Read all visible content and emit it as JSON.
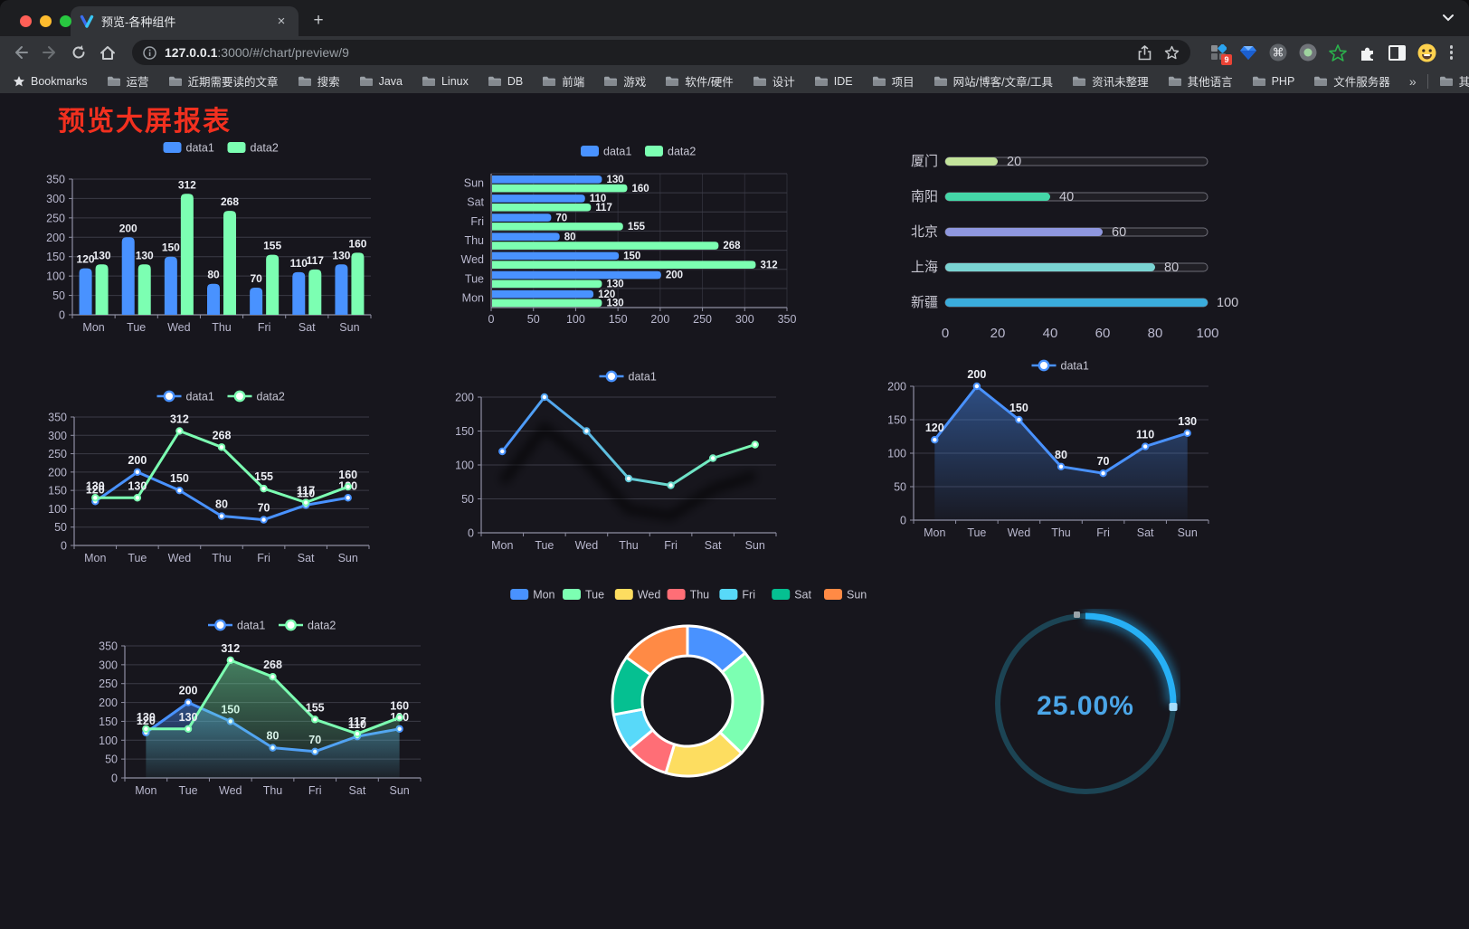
{
  "browser": {
    "tab": {
      "title": "预览-各种组件",
      "close_glyph": "×"
    },
    "new_tab_glyph": "+",
    "url": {
      "host": "127.0.0.1",
      "rest": ":3000/#/chart/preview/9"
    },
    "extensions_badge": "9",
    "bookmarks": {
      "label": "Bookmarks",
      "items": [
        "运营",
        "近期需要读的文章",
        "搜索",
        "Java",
        "Linux",
        "DB",
        "前端",
        "游戏",
        "软件/硬件",
        "设计",
        "IDE",
        "项目",
        "网站/博客/文章/工具",
        "资讯未整理",
        "其他语言",
        "PHP",
        "文件服务器"
      ],
      "overflow": "»",
      "other": "其他书签"
    }
  },
  "page": {
    "title": "预览大屏报表",
    "title_color": "#f2301f",
    "background": "#17161d"
  },
  "chart_data": [
    {
      "id": "grouped-bar",
      "type": "bar",
      "categories": [
        "Mon",
        "Tue",
        "Wed",
        "Thu",
        "Fri",
        "Sat",
        "Sun"
      ],
      "series": [
        {
          "name": "data1",
          "color": "#4992ff",
          "values": [
            120,
            200,
            150,
            80,
            70,
            110,
            130
          ]
        },
        {
          "name": "data2",
          "color": "#7cffb2",
          "values": [
            130,
            130,
            312,
            268,
            155,
            117,
            160
          ]
        }
      ],
      "ylim": [
        0,
        350
      ],
      "ytick_step": 50,
      "legend_position": "top",
      "grid": true,
      "value_labels": true
    },
    {
      "id": "grouped-bar-horizontal",
      "type": "bar-horizontal",
      "categories": [
        "Mon",
        "Tue",
        "Wed",
        "Thu",
        "Fri",
        "Sat",
        "Sun"
      ],
      "display_top_to_bottom": [
        "Sun",
        "Sat",
        "Fri",
        "Thu",
        "Wed",
        "Tue",
        "Mon"
      ],
      "series": [
        {
          "name": "data1",
          "color": "#4992ff",
          "values": [
            120,
            200,
            150,
            80,
            70,
            110,
            130
          ]
        },
        {
          "name": "data2",
          "color": "#7cffb2",
          "values": [
            130,
            130,
            312,
            268,
            155,
            117,
            160
          ]
        }
      ],
      "xlim": [
        0,
        350
      ],
      "xtick_step": 50,
      "legend_position": "top",
      "grid": true,
      "value_labels": true
    },
    {
      "id": "city-progress",
      "type": "progress",
      "max": 100,
      "axis_ticks": [
        0,
        20,
        40,
        60,
        80,
        100
      ],
      "items": [
        {
          "label": "厦门",
          "value": 20,
          "color": "#c3e39b"
        },
        {
          "label": "南阳",
          "value": 40,
          "color": "#44d7a8"
        },
        {
          "label": "北京",
          "value": 60,
          "color": "#8f97df"
        },
        {
          "label": "上海",
          "value": 80,
          "color": "#7ad3d2"
        },
        {
          "label": "新疆",
          "value": 100,
          "color": "#3aacdc"
        }
      ]
    },
    {
      "id": "line-two-series",
      "type": "line",
      "categories": [
        "Mon",
        "Tue",
        "Wed",
        "Thu",
        "Fri",
        "Sat",
        "Sun"
      ],
      "series": [
        {
          "name": "data1",
          "color": "#4992ff",
          "values": [
            120,
            200,
            150,
            80,
            70,
            110,
            130
          ]
        },
        {
          "name": "data2",
          "color": "#7cffb2",
          "values": [
            130,
            130,
            312,
            268,
            155,
            117,
            160
          ]
        }
      ],
      "ylim": [
        0,
        350
      ],
      "ytick_step": 50,
      "legend_position": "top",
      "value_labels": true
    },
    {
      "id": "line-gradient",
      "type": "line",
      "categories": [
        "Mon",
        "Tue",
        "Wed",
        "Thu",
        "Fri",
        "Sat",
        "Sun"
      ],
      "series": [
        {
          "name": "data1",
          "gradient": [
            "#4992ff",
            "#7cffb2"
          ],
          "values": [
            120,
            200,
            150,
            80,
            70,
            110,
            130
          ]
        }
      ],
      "ylim": [
        0,
        200
      ],
      "ytick_step": 50,
      "legend_position": "top",
      "value_labels": false,
      "shadow": true
    },
    {
      "id": "area-single",
      "type": "area",
      "categories": [
        "Mon",
        "Tue",
        "Wed",
        "Thu",
        "Fri",
        "Sat",
        "Sun"
      ],
      "series": [
        {
          "name": "data1",
          "color": "#4992ff",
          "values": [
            120,
            200,
            150,
            80,
            70,
            110,
            130
          ],
          "area": true
        }
      ],
      "ylim": [
        0,
        200
      ],
      "ytick_step": 50,
      "legend_position": "top",
      "value_labels": true
    },
    {
      "id": "area-two-series",
      "type": "area",
      "categories": [
        "Mon",
        "Tue",
        "Wed",
        "Thu",
        "Fri",
        "Sat",
        "Sun"
      ],
      "series": [
        {
          "name": "data1",
          "color": "#4992ff",
          "values": [
            120,
            200,
            150,
            80,
            70,
            110,
            130
          ],
          "area": true
        },
        {
          "name": "data2",
          "color": "#7cffb2",
          "values": [
            130,
            130,
            312,
            268,
            155,
            117,
            160
          ],
          "area": true
        }
      ],
      "ylim": [
        0,
        350
      ],
      "ytick_step": 50,
      "legend_position": "top",
      "value_labels": true
    },
    {
      "id": "donut",
      "type": "pie",
      "categories": [
        "Mon",
        "Tue",
        "Wed",
        "Thu",
        "Fri",
        "Sat",
        "Sun"
      ],
      "values": [
        120,
        200,
        150,
        80,
        70,
        110,
        130
      ],
      "colors": [
        "#4992ff",
        "#7cffb2",
        "#fddd60",
        "#ff6e76",
        "#58d9f9",
        "#05c091",
        "#ff8a45"
      ],
      "inner_radius_ratio": 0.6,
      "legend_position": "top"
    },
    {
      "id": "gauge",
      "type": "gauge",
      "value": "25.00%",
      "percent": 25,
      "color": "#27b0f5",
      "track_color": "#1c4454",
      "text_color": "#4ba6e8"
    }
  ]
}
